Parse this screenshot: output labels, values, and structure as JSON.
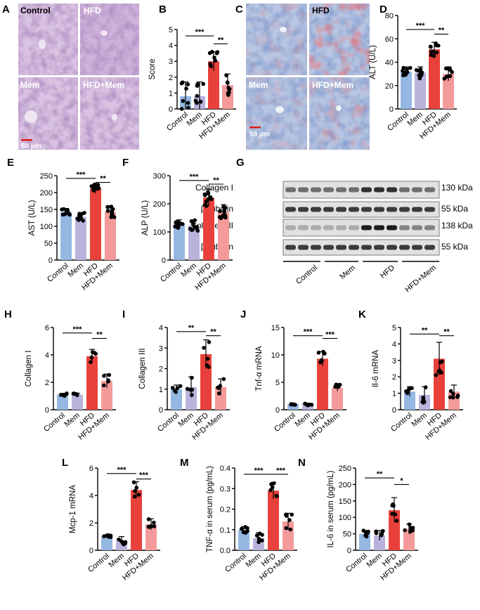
{
  "colors": {
    "Control": "#95b8e3",
    "Mem": "#b9b3dc",
    "HFD": "#e8413b",
    "HFD+Mem": "#f49a9a"
  },
  "panel_labels": [
    "A",
    "B",
    "C",
    "D",
    "E",
    "F",
    "G",
    "H",
    "I",
    "J",
    "K",
    "L",
    "M",
    "N"
  ],
  "histology": {
    "A": {
      "tiles": [
        "Control",
        "HFD",
        "Mem",
        "HFD+Mem"
      ],
      "scale": "50 μm"
    },
    "C": {
      "tiles": [
        "Control",
        "HFD",
        "Mem",
        "HFD+Mem"
      ],
      "scale": "50 μm"
    }
  },
  "western_blot": {
    "bands": [
      {
        "name": "Collagen I",
        "kda": "130 kDa"
      },
      {
        "name": "β-tubulin",
        "kda": "55 kDa"
      },
      {
        "name": "Collagen III",
        "kda": "138 kDa"
      },
      {
        "name": "β-tubulin",
        "kda": "55 kDa"
      }
    ],
    "groups": [
      "Control",
      "Mem",
      "HFD",
      "HFD+Mem"
    ]
  },
  "chart_data": [
    {
      "panel": "B",
      "type": "bar",
      "categories": [
        "Control",
        "Mem",
        "HFD",
        "HFD+Mem"
      ],
      "values": [
        0.8,
        0.8,
        3.0,
        1.5
      ],
      "errors": [
        0.9,
        0.9,
        0.6,
        0.7
      ],
      "ylabel": "Score",
      "ylim": [
        0,
        5
      ],
      "yticks": [
        0,
        1,
        2,
        3,
        4,
        5
      ],
      "sig": [
        {
          "a": 0,
          "b": 2,
          "label": "***",
          "y": 4.6
        },
        {
          "a": 2,
          "b": 3,
          "label": "**",
          "y": 4.1
        }
      ]
    },
    {
      "panel": "D",
      "type": "bar",
      "categories": [
        "Control",
        "Mem",
        "HFD",
        "HFD+Mem"
      ],
      "values": [
        32,
        31,
        51,
        30
      ],
      "errors": [
        4,
        5,
        6,
        6
      ],
      "ylabel": "ALT (U/L)",
      "ylim": [
        0,
        80
      ],
      "yticks": [
        0,
        20,
        40,
        60,
        80
      ],
      "sig": [
        {
          "a": 0,
          "b": 2,
          "label": "***",
          "y": 68
        },
        {
          "a": 2,
          "b": 3,
          "label": "**",
          "y": 64
        }
      ]
    },
    {
      "panel": "E",
      "type": "bar",
      "categories": [
        "Control",
        "Mem",
        "HFD",
        "HFD+Mem"
      ],
      "values": [
        143,
        128,
        212,
        143
      ],
      "errors": [
        10,
        12,
        15,
        18
      ],
      "ylabel": "AST (U/L)",
      "ylim": [
        0,
        250
      ],
      "yticks": [
        0,
        50,
        100,
        150,
        200,
        250
      ],
      "sig": [
        {
          "a": 0,
          "b": 2,
          "label": "***",
          "y": 242
        },
        {
          "a": 2,
          "b": 3,
          "label": "**",
          "y": 230
        }
      ]
    },
    {
      "panel": "F",
      "type": "bar",
      "categories": [
        "Control",
        "Mem",
        "HFD",
        "HFD+Mem"
      ],
      "values": [
        128,
        123,
        222,
        172
      ],
      "errors": [
        15,
        20,
        30,
        25
      ],
      "ylabel": "ALP (U/L)",
      "ylim": [
        0,
        300
      ],
      "yticks": [
        0,
        100,
        200,
        300
      ],
      "sig": [
        {
          "a": 0,
          "b": 2,
          "label": "***",
          "y": 283
        },
        {
          "a": 2,
          "b": 3,
          "label": "**",
          "y": 270
        }
      ]
    },
    {
      "panel": "H",
      "type": "bar",
      "categories": [
        "Control",
        "Mem",
        "HFD",
        "HFD+Mem"
      ],
      "values": [
        1.1,
        1.1,
        3.9,
        2.1
      ],
      "errors": [
        0.1,
        0.1,
        0.5,
        0.5
      ],
      "ylabel": "Collagen I",
      "ylim": [
        0,
        6
      ],
      "yticks": [
        0,
        2,
        4,
        6
      ],
      "sig": [
        {
          "a": 0,
          "b": 2,
          "label": "***",
          "y": 5.6
        },
        {
          "a": 2,
          "b": 3,
          "label": "**",
          "y": 5.2
        }
      ]
    },
    {
      "panel": "I",
      "type": "bar",
      "categories": [
        "Control",
        "Mem",
        "HFD",
        "HFD+Mem"
      ],
      "values": [
        1.0,
        1.1,
        2.7,
        1.1
      ],
      "errors": [
        0.2,
        0.5,
        0.7,
        0.4
      ],
      "ylabel": "Collagen III",
      "ylim": [
        0,
        4
      ],
      "yticks": [
        0,
        1,
        2,
        3,
        4
      ],
      "sig": [
        {
          "a": 0,
          "b": 2,
          "label": "**",
          "y": 3.8
        },
        {
          "a": 2,
          "b": 3,
          "label": "**",
          "y": 3.6
        }
      ]
    },
    {
      "panel": "J",
      "type": "bar",
      "categories": [
        "Control",
        "Mem",
        "HFD",
        "HFD+Mem"
      ],
      "values": [
        1.0,
        1.0,
        9.3,
        4.0
      ],
      "errors": [
        0.1,
        0.2,
        1.3,
        0.6
      ],
      "ylabel": "Tnf-α mRNA",
      "ylim": [
        0,
        15
      ],
      "yticks": [
        0,
        5,
        10,
        15
      ],
      "sig": [
        {
          "a": 0,
          "b": 2,
          "label": "***",
          "y": 13.5
        },
        {
          "a": 2,
          "b": 3,
          "label": "***",
          "y": 13.0
        }
      ]
    },
    {
      "panel": "K",
      "type": "bar",
      "categories": [
        "Control",
        "Mem",
        "HFD",
        "HFD+Mem"
      ],
      "values": [
        1.1,
        0.9,
        3.1,
        1.1
      ],
      "errors": [
        0.3,
        0.5,
        1.0,
        0.4
      ],
      "ylabel": "Il-6 mRNA",
      "ylim": [
        0,
        5
      ],
      "yticks": [
        0,
        1,
        2,
        3,
        4,
        5
      ],
      "sig": [
        {
          "a": 0,
          "b": 2,
          "label": "**",
          "y": 4.6
        },
        {
          "a": 2,
          "b": 3,
          "label": "**",
          "y": 4.5
        }
      ]
    },
    {
      "panel": "L",
      "type": "bar",
      "categories": [
        "Control",
        "Mem",
        "HFD",
        "HFD+Mem"
      ],
      "values": [
        1.0,
        0.7,
        4.4,
        1.9
      ],
      "errors": [
        0.1,
        0.3,
        0.6,
        0.4
      ],
      "ylabel": "Mcp-1 mRNA",
      "ylim": [
        0,
        6
      ],
      "yticks": [
        0,
        2,
        4,
        6
      ],
      "sig": [
        {
          "a": 0,
          "b": 2,
          "label": "***",
          "y": 5.6
        },
        {
          "a": 2,
          "b": 3,
          "label": "***",
          "y": 5.2
        }
      ]
    },
    {
      "panel": "M",
      "type": "bar",
      "categories": [
        "Control",
        "Mem",
        "HFD",
        "HFD+Mem"
      ],
      "values": [
        0.1,
        0.06,
        0.29,
        0.14
      ],
      "errors": [
        0.015,
        0.025,
        0.04,
        0.04
      ],
      "ylabel": "TNF-α in serum (pg/mL)",
      "ylim": [
        0,
        0.4
      ],
      "yticks": [
        0.0,
        0.1,
        0.2,
        0.3,
        0.4
      ],
      "sig": [
        {
          "a": 0,
          "b": 2,
          "label": "***",
          "y": 0.37
        },
        {
          "a": 2,
          "b": 3,
          "label": "***",
          "y": 0.37
        }
      ]
    },
    {
      "panel": "N",
      "type": "bar",
      "categories": [
        "Control",
        "Mem",
        "HFD",
        "HFD+Mem"
      ],
      "values": [
        50,
        45,
        122,
        65
      ],
      "errors": [
        10,
        15,
        38,
        15
      ],
      "ylabel": "IL-6 in serum (pg/mL)",
      "ylim": [
        0,
        250
      ],
      "yticks": [
        0,
        50,
        100,
        150,
        200,
        250
      ],
      "sig": [
        {
          "a": 0,
          "b": 2,
          "label": "**",
          "y": 220
        },
        {
          "a": 2,
          "b": 3,
          "label": "*",
          "y": 200
        }
      ]
    }
  ]
}
